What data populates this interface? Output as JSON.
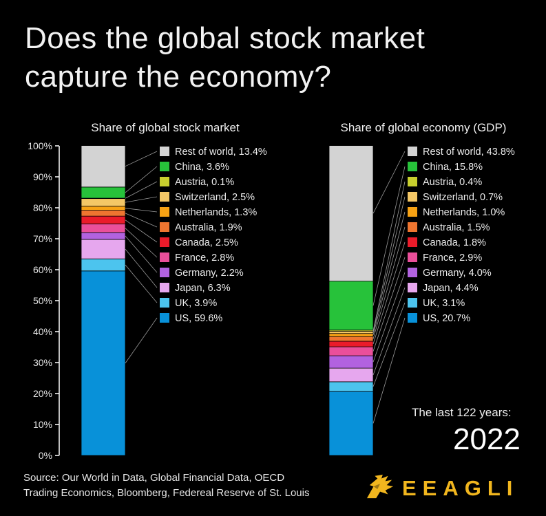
{
  "title": "Does the global stock market capture the economy?",
  "footer": {
    "source_line1": "Source: Our World in Data, Global Financial Data, OECD",
    "source_line2": "Trading Economics, Bloomberg, Federeal Reserve of St. Louis",
    "year_caption": "The last 122 years:",
    "year": "2022",
    "brand": "EEAGLI"
  },
  "chart_data": {
    "type": "bar",
    "stacked": true,
    "ylim": [
      0,
      100
    ],
    "yticks": [
      "0%",
      "10%",
      "20%",
      "30%",
      "40%",
      "50%",
      "60%",
      "70%",
      "80%",
      "90%",
      "100%"
    ],
    "stack_order_bottom_to_top": [
      "US",
      "UK",
      "Japan",
      "Germany",
      "France",
      "Canada",
      "Australia",
      "Netherlands",
      "Switzerland",
      "Austria",
      "China",
      "Rest of world"
    ],
    "colors": {
      "US": "#0891d9",
      "UK": "#4cc4ee",
      "Japan": "#e6a7ee",
      "Germany": "#b262e0",
      "France": "#ea4f9a",
      "Canada": "#ea1b2a",
      "Australia": "#ee7530",
      "Netherlands": "#f7a214",
      "Switzerland": "#f4c766",
      "Austria": "#c8cf2e",
      "China": "#27c23a",
      "Rest of world": "#d3d3d3"
    },
    "bars": [
      {
        "label": "Share of global stock market",
        "segments": [
          {
            "name": "Rest of world",
            "value": 13.4,
            "label": "Rest of world, 13.4%"
          },
          {
            "name": "China",
            "value": 3.6,
            "label": "China, 3.6%"
          },
          {
            "name": "Austria",
            "value": 0.1,
            "label": "Austria, 0.1%"
          },
          {
            "name": "Switzerland",
            "value": 2.5,
            "label": "Switzerland, 2.5%"
          },
          {
            "name": "Netherlands",
            "value": 1.3,
            "label": "Netherlands, 1.3%"
          },
          {
            "name": "Australia",
            "value": 1.9,
            "label": "Australia, 1.9%"
          },
          {
            "name": "Canada",
            "value": 2.5,
            "label": "Canada, 2.5%"
          },
          {
            "name": "France",
            "value": 2.8,
            "label": "France, 2.8%"
          },
          {
            "name": "Germany",
            "value": 2.2,
            "label": "Germany, 2.2%"
          },
          {
            "name": "Japan",
            "value": 6.3,
            "label": "Japan, 6.3%"
          },
          {
            "name": "UK",
            "value": 3.9,
            "label": "UK, 3.9%"
          },
          {
            "name": "US",
            "value": 59.6,
            "label": "US, 59.6%"
          }
        ]
      },
      {
        "label": "Share of global economy (GDP)",
        "segments": [
          {
            "name": "Rest of world",
            "value": 43.8,
            "label": "Rest of world, 43.8%"
          },
          {
            "name": "China",
            "value": 15.8,
            "label": "China, 15.8%"
          },
          {
            "name": "Austria",
            "value": 0.4,
            "label": "Austria, 0.4%"
          },
          {
            "name": "Switzerland",
            "value": 0.7,
            "label": "Switzerland, 0.7%"
          },
          {
            "name": "Netherlands",
            "value": 1.0,
            "label": "Netherlands, 1.0%"
          },
          {
            "name": "Australia",
            "value": 1.5,
            "label": "Australia, 1.5%"
          },
          {
            "name": "Canada",
            "value": 1.8,
            "label": "Canada, 1.8%"
          },
          {
            "name": "France",
            "value": 2.9,
            "label": "France, 2.9%"
          },
          {
            "name": "Germany",
            "value": 4.0,
            "label": "Germany, 4.0%"
          },
          {
            "name": "Japan",
            "value": 4.4,
            "label": "Japan, 4.4%"
          },
          {
            "name": "UK",
            "value": 3.1,
            "label": "UK, 3.1%"
          },
          {
            "name": "US",
            "value": 20.7,
            "label": "US, 20.7%"
          }
        ]
      }
    ]
  }
}
